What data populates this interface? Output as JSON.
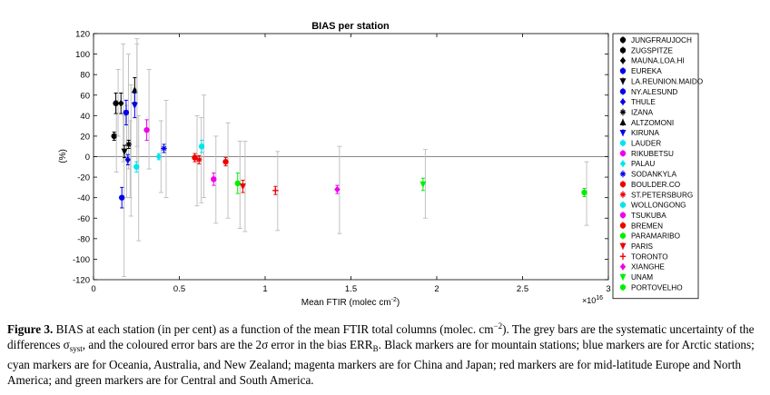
{
  "chart_data": {
    "type": "scatter",
    "title": "BIAS per station",
    "xlabel": "Mean FTIR (molec cm",
    "xlabel_sup": "-2",
    "xlabel_end": ")",
    "ylabel": "(%)",
    "x_exponent": "×10",
    "x_exponent_sup": "16",
    "xlim": [
      0,
      3
    ],
    "ylim": [
      -120,
      120
    ],
    "xticks": [
      0,
      0.5,
      1,
      1.5,
      2,
      2.5,
      3
    ],
    "xtick_labels": [
      "0",
      "0.5",
      "1",
      "1.5",
      "2",
      "2.5",
      "3"
    ],
    "yticks": [
      120,
      100,
      80,
      60,
      40,
      20,
      0,
      -20,
      -40,
      -60,
      -80,
      -100,
      -120
    ],
    "grid": false,
    "legend_position": "right-outside",
    "zero_line": true,
    "colors": {
      "mountain": "#000000",
      "arctic": "#0000ee",
      "oceania": "#00e5ee",
      "asia": "#ee00ee",
      "midlat": "#ee0000",
      "latin": "#00ee00",
      "syst": "#bbbbbb",
      "zero": "#888888"
    },
    "series": [
      {
        "name": "JUNGFRAUJOCH",
        "group": "mountain",
        "marker": "circle",
        "x": 0.12,
        "y": 20,
        "err": 4,
        "syst_lo": -15,
        "syst_hi": 55
      },
      {
        "name": "ZUGSPITZE",
        "group": "mountain",
        "marker": "circle",
        "x": 0.13,
        "y": 52,
        "err": 10,
        "syst_lo": 20,
        "syst_hi": 85
      },
      {
        "name": "MAUNA.LOA.HI",
        "group": "mountain",
        "marker": "diamond",
        "x": 0.16,
        "y": 52,
        "err": 10,
        "syst_lo": -5,
        "syst_hi": 110
      },
      {
        "name": "EUREKA",
        "group": "arctic",
        "marker": "circle",
        "x": 0.165,
        "y": -40,
        "err": 10,
        "syst_lo": -117,
        "syst_hi": 40
      },
      {
        "name": "LA.REUNION.MAIDO",
        "group": "mountain",
        "marker": "triangle-down",
        "x": 0.18,
        "y": 5,
        "err": 6,
        "syst_lo": -40,
        "syst_hi": 50
      },
      {
        "name": "NY.ALESUND",
        "group": "arctic",
        "marker": "circle",
        "x": 0.19,
        "y": 43,
        "err": 12,
        "syst_lo": -12,
        "syst_hi": 100
      },
      {
        "name": "THULE",
        "group": "arctic",
        "marker": "diamond",
        "x": 0.2,
        "y": -3,
        "err": 5,
        "syst_lo": -40,
        "syst_hi": 35
      },
      {
        "name": "IZANA",
        "group": "mountain",
        "marker": "star",
        "x": 0.205,
        "y": 12,
        "err": 4,
        "syst_lo": -58,
        "syst_hi": 70
      },
      {
        "name": "ALTZOMONI",
        "group": "mountain",
        "marker": "triangle-up",
        "x": 0.24,
        "y": 65,
        "err": 12,
        "syst_lo": 10,
        "syst_hi": 115
      },
      {
        "name": "KIRUNA",
        "group": "arctic",
        "marker": "triangle-down",
        "x": 0.24,
        "y": 50,
        "err": 12,
        "syst_lo": -10,
        "syst_hi": 110
      },
      {
        "name": "LAUDER",
        "group": "oceania",
        "marker": "circle",
        "x": 0.25,
        "y": -10,
        "err": 5,
        "syst_lo": -82,
        "syst_hi": 40
      },
      {
        "name": "RIKUBETSU",
        "group": "asia",
        "marker": "circle",
        "x": 0.31,
        "y": 26,
        "err": 10,
        "syst_lo": -12,
        "syst_hi": 85
      },
      {
        "name": "PALAU",
        "group": "oceania",
        "marker": "diamond",
        "x": 0.38,
        "y": 0,
        "err": 3,
        "syst_lo": -35,
        "syst_hi": 35
      },
      {
        "name": "SODANKYLA",
        "group": "arctic",
        "marker": "star",
        "x": 0.41,
        "y": 8,
        "err": 4,
        "syst_lo": -40,
        "syst_hi": 55
      },
      {
        "name": "BOULDER.CO",
        "group": "midlat",
        "marker": "circle",
        "x": 0.59,
        "y": -1,
        "err": 4,
        "syst_lo": -48,
        "syst_hi": 40
      },
      {
        "name": "ST.PETERSBURG",
        "group": "midlat",
        "marker": "star",
        "x": 0.615,
        "y": -3,
        "err": 4,
        "syst_lo": -45,
        "syst_hi": 38
      },
      {
        "name": "WOLLONGONG",
        "group": "oceania",
        "marker": "circle",
        "x": 0.63,
        "y": 10,
        "err": 6,
        "syst_lo": -40,
        "syst_hi": 60
      },
      {
        "name": "TSUKUBA",
        "group": "asia",
        "marker": "circle",
        "x": 0.7,
        "y": -22,
        "err": 6,
        "syst_lo": -65,
        "syst_hi": 20
      },
      {
        "name": "BREMEN",
        "group": "midlat",
        "marker": "circle",
        "x": 0.77,
        "y": -5,
        "err": 4,
        "syst_lo": -60,
        "syst_hi": 33
      },
      {
        "name": "PARAMARIBO",
        "group": "latin",
        "marker": "circle",
        "x": 0.84,
        "y": -26,
        "err": 10,
        "syst_lo": -70,
        "syst_hi": 15
      },
      {
        "name": "PARIS",
        "group": "midlat",
        "marker": "triangle-down",
        "x": 0.87,
        "y": -29,
        "err": 6,
        "syst_lo": -73,
        "syst_hi": 15
      },
      {
        "name": "TORONTO",
        "group": "midlat",
        "marker": "cross",
        "x": 1.06,
        "y": -33,
        "err": 4,
        "syst_lo": -72,
        "syst_hi": 5
      },
      {
        "name": "XIANGHE",
        "group": "asia",
        "marker": "diamond",
        "x": 1.42,
        "y": -32,
        "err": 4,
        "syst_lo": -75,
        "syst_hi": 10
      },
      {
        "name": "UNAM",
        "group": "latin",
        "marker": "triangle-down",
        "x": 1.92,
        "y": -27,
        "err": 6,
        "syst_lo": -60,
        "syst_hi": 7
      },
      {
        "name": "PORTOVELHO",
        "group": "latin",
        "marker": "circle",
        "x": 2.86,
        "y": -35,
        "err": 4,
        "syst_lo": -67,
        "syst_hi": -5
      }
    ]
  },
  "caption": {
    "label": "Figure 3.",
    "part1": " BIAS at each station (in per cent) as a function of the mean FTIR total columns (molec. cm",
    "sup1": "−2",
    "part2": "). The grey bars are the systematic uncertainty of the differences σ",
    "sub1": "syst",
    "part3": ", and the coloured error bars are the 2σ error in the bias ERR",
    "sub2": "B",
    "part4": ". Black markers are for mountain stations; blue markers are for Arctic stations; cyan markers are for Oceania, Australia, and New Zealand; magenta markers are for China and Japan; red markers are for mid-latitude Europe and North America; and green markers are for Central and South America."
  }
}
